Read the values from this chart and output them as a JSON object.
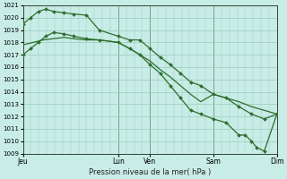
{
  "bg_color": "#c8ece6",
  "grid_color": "#99ccbb",
  "line_color": "#2d6e2d",
  "marker_color": "#2d6e2d",
  "xlabel": "Pression niveau de la mer( hPa )",
  "ylim": [
    1009,
    1021
  ],
  "day_labels": [
    "Jeu",
    "Lun",
    "Ven",
    "Sam",
    "Dim"
  ],
  "day_positions": [
    0.0,
    0.375,
    0.5,
    0.75,
    1.0
  ],
  "series1_x": [
    0.0,
    0.03,
    0.06,
    0.09,
    0.12,
    0.16,
    0.2,
    0.25,
    0.3,
    0.375,
    0.42,
    0.46,
    0.5,
    0.54,
    0.58,
    0.62,
    0.66,
    0.7,
    0.75,
    0.8,
    0.85,
    0.9,
    0.95,
    1.0
  ],
  "series1_y": [
    1019.5,
    1020.0,
    1020.5,
    1020.7,
    1020.5,
    1020.4,
    1020.3,
    1020.2,
    1019.0,
    1018.5,
    1018.2,
    1018.2,
    1017.5,
    1016.8,
    1016.2,
    1015.5,
    1014.8,
    1014.5,
    1013.8,
    1013.5,
    1012.8,
    1012.2,
    1011.8,
    1012.2
  ],
  "series2_x": [
    0.0,
    0.04,
    0.08,
    0.12,
    0.16,
    0.2,
    0.25,
    0.3,
    0.375,
    0.42,
    0.46,
    0.5,
    0.54,
    0.58,
    0.62,
    0.66,
    0.7,
    0.75,
    0.8,
    0.85,
    0.9,
    0.95,
    1.0
  ],
  "series2_y": [
    1017.8,
    1018.0,
    1018.2,
    1018.3,
    1018.4,
    1018.3,
    1018.2,
    1018.2,
    1018.0,
    1017.5,
    1017.0,
    1016.5,
    1015.8,
    1015.2,
    1014.5,
    1013.8,
    1013.2,
    1013.8,
    1013.5,
    1013.2,
    1012.8,
    1012.5,
    1012.2
  ],
  "series3_x": [
    0.0,
    0.03,
    0.06,
    0.09,
    0.12,
    0.16,
    0.2,
    0.25,
    0.3,
    0.375,
    0.42,
    0.46,
    0.5,
    0.54,
    0.58,
    0.62,
    0.66,
    0.7,
    0.75,
    0.8,
    0.85,
    0.875,
    0.9,
    0.92,
    0.95,
    1.0
  ],
  "series3_y": [
    1017.0,
    1017.5,
    1018.0,
    1018.5,
    1018.8,
    1018.7,
    1018.5,
    1018.3,
    1018.2,
    1018.0,
    1017.5,
    1017.0,
    1016.2,
    1015.5,
    1014.5,
    1013.5,
    1012.5,
    1012.2,
    1011.8,
    1011.5,
    1010.5,
    1010.5,
    1010.0,
    1009.5,
    1009.2,
    1012.2
  ]
}
